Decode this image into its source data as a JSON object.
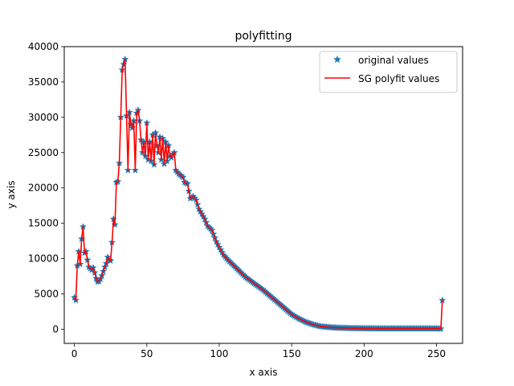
{
  "chart_data": {
    "type": "line",
    "title": "polyfitting",
    "xlabel": "x axis",
    "ylabel": "y axis",
    "xlim": [
      -7,
      268
    ],
    "ylim": [
      -2000,
      40000
    ],
    "xticks": [
      0,
      50,
      100,
      150,
      200,
      250
    ],
    "yticks": [
      0,
      5000,
      10000,
      15000,
      20000,
      25000,
      30000,
      35000,
      40000
    ],
    "grid": false,
    "legend_position": "top-right",
    "series": [
      {
        "name": "original values",
        "marker": "star",
        "color": "#1f77b4",
        "key_points": [
          [
            0,
            4500
          ],
          [
            1,
            4100
          ],
          [
            2,
            9000
          ],
          [
            3,
            11000
          ],
          [
            4,
            9200
          ],
          [
            5,
            12800
          ],
          [
            6,
            14500
          ],
          [
            7,
            10800
          ],
          [
            8,
            11000
          ],
          [
            9,
            9800
          ],
          [
            10,
            8800
          ],
          [
            11,
            8600
          ],
          [
            12,
            8400
          ],
          [
            13,
            8700
          ],
          [
            14,
            8000
          ],
          [
            15,
            7200
          ],
          [
            16,
            6700
          ],
          [
            17,
            6800
          ],
          [
            18,
            7100
          ],
          [
            19,
            7600
          ],
          [
            20,
            8200
          ],
          [
            21,
            8800
          ],
          [
            22,
            9300
          ],
          [
            23,
            10200
          ],
          [
            24,
            9800
          ],
          [
            25,
            9700
          ],
          [
            26,
            12300
          ],
          [
            27,
            15600
          ],
          [
            28,
            14800
          ],
          [
            29,
            20800
          ],
          [
            30,
            20900
          ],
          [
            31,
            23500
          ],
          [
            32,
            30000
          ],
          [
            33,
            36700
          ],
          [
            34,
            37500
          ],
          [
            35,
            38200
          ],
          [
            36,
            30200
          ],
          [
            37,
            22500
          ],
          [
            38,
            30700
          ],
          [
            39,
            29000
          ],
          [
            40,
            28500
          ],
          [
            41,
            29500
          ],
          [
            42,
            22500
          ],
          [
            43,
            30600
          ],
          [
            44,
            31000
          ],
          [
            45,
            29500
          ],
          [
            46,
            26800
          ],
          [
            47,
            25000
          ],
          [
            48,
            26500
          ],
          [
            49,
            24500
          ],
          [
            50,
            29200
          ],
          [
            51,
            24000
          ],
          [
            52,
            26500
          ],
          [
            53,
            23800
          ],
          [
            54,
            27500
          ],
          [
            55,
            23300
          ],
          [
            56,
            27800
          ],
          [
            57,
            26000
          ],
          [
            58,
            25000
          ],
          [
            59,
            27200
          ],
          [
            60,
            24000
          ],
          [
            61,
            27000
          ],
          [
            62,
            23400
          ],
          [
            63,
            26500
          ],
          [
            64,
            23800
          ],
          [
            65,
            26000
          ],
          [
            66,
            24500
          ],
          [
            67,
            24300
          ],
          [
            68,
            24800
          ],
          [
            69,
            25000
          ],
          [
            70,
            22500
          ],
          [
            72,
            22000
          ],
          [
            75,
            21500
          ],
          [
            76,
            20800
          ],
          [
            78,
            20600
          ],
          [
            80,
            18500
          ],
          [
            82,
            18800
          ],
          [
            84,
            18300
          ],
          [
            86,
            17000
          ],
          [
            88,
            16300
          ],
          [
            90,
            15600
          ],
          [
            92,
            14600
          ],
          [
            95,
            14000
          ],
          [
            98,
            12400
          ],
          [
            100,
            11600
          ],
          [
            103,
            10500
          ],
          [
            106,
            9800
          ],
          [
            110,
            9000
          ],
          [
            114,
            8200
          ],
          [
            118,
            7400
          ],
          [
            122,
            6800
          ],
          [
            126,
            6200
          ],
          [
            130,
            5600
          ],
          [
            134,
            4900
          ],
          [
            138,
            4200
          ],
          [
            142,
            3500
          ],
          [
            146,
            2800
          ],
          [
            150,
            2100
          ],
          [
            155,
            1500
          ],
          [
            160,
            1000
          ],
          [
            165,
            650
          ],
          [
            170,
            400
          ],
          [
            175,
            300
          ],
          [
            180,
            220
          ],
          [
            190,
            150
          ],
          [
            200,
            120
          ],
          [
            210,
            100
          ],
          [
            220,
            100
          ],
          [
            230,
            100
          ],
          [
            240,
            100
          ],
          [
            250,
            100
          ],
          [
            252,
            80
          ],
          [
            253,
            60
          ],
          [
            254,
            4100
          ]
        ]
      },
      {
        "name": "SG polyfit values",
        "marker": "none",
        "color": "#ff0000",
        "follows": "original values"
      }
    ]
  }
}
